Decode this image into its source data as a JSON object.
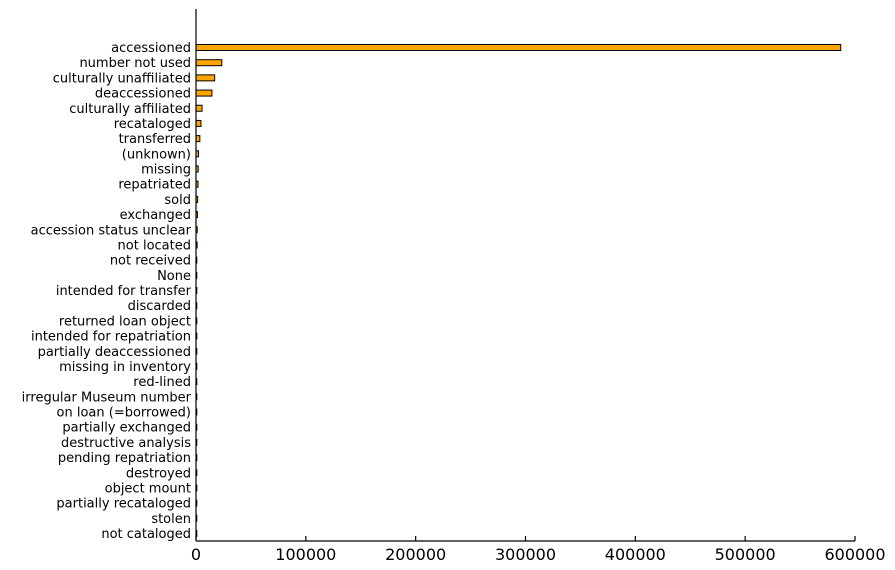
{
  "chart_data": {
    "type": "bar",
    "orientation": "horizontal",
    "title": "",
    "xlabel": "",
    "ylabel": "",
    "bar_color": "#FFA500",
    "xlim": [
      0,
      600000
    ],
    "xticks": [
      0,
      100000,
      200000,
      300000,
      400000,
      500000,
      600000
    ],
    "xtick_labels": [
      "0",
      "100000",
      "200000",
      "300000",
      "400000",
      "500000",
      "600000"
    ],
    "grid": false,
    "categories": [
      "accessioned",
      "number not used",
      "culturally unaffiliated",
      "deaccessioned",
      "culturally affiliated",
      "recataloged",
      "transferred",
      "(unknown)",
      "missing",
      "repatriated",
      "sold",
      "exchanged",
      "accession status unclear",
      "not located",
      "not received",
      "None",
      "intended for transfer",
      "discarded",
      "returned loan object",
      "intended for repatriation",
      "partially deaccessioned",
      "missing in inventory",
      "red-lined",
      "irregular Museum number",
      "on loan (=borrowed)",
      "partially exchanged",
      "destructive analysis",
      "pending repatriation",
      "destroyed",
      "object mount",
      "partially recataloged",
      "stolen",
      "not cataloged"
    ],
    "values": [
      587000,
      23500,
      17000,
      14500,
      5500,
      4500,
      3500,
      2300,
      2000,
      1800,
      1500,
      1300,
      1100,
      1000,
      600,
      500,
      400,
      350,
      300,
      250,
      200,
      180,
      150,
      120,
      100,
      90,
      80,
      70,
      60,
      50,
      40,
      30,
      20
    ]
  }
}
